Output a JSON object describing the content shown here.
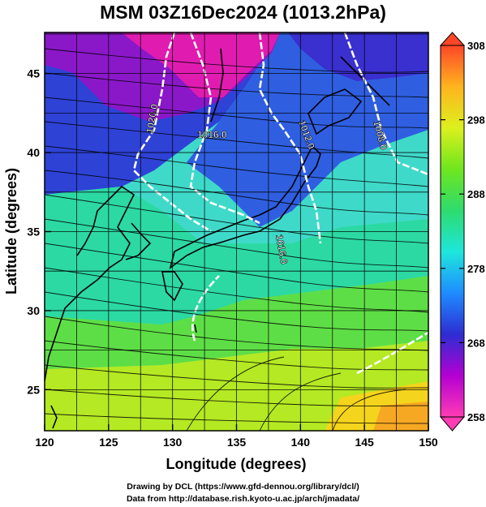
{
  "title": "MSM 03Z16Dec2024 (1013.2hPa)",
  "x_axis": {
    "label": "Longitude (degrees)",
    "range": [
      120,
      150
    ],
    "ticks": [
      120,
      125,
      130,
      135,
      140,
      145,
      150
    ],
    "tick_labels": [
      "120",
      "125",
      "130",
      "135",
      "140",
      "145",
      "150"
    ]
  },
  "y_axis": {
    "label": "Latitude  (degrees)",
    "range": [
      22.4,
      47.6
    ],
    "ticks": [
      25,
      30,
      35,
      40,
      45
    ],
    "tick_labels": [
      "25",
      "30",
      "35",
      "40",
      "45"
    ]
  },
  "colorbar": {
    "range": [
      258,
      308
    ],
    "ticks": [
      258,
      268,
      278,
      288,
      298,
      308
    ],
    "tick_labels": [
      "258",
      "268",
      "278",
      "288",
      "298",
      "308"
    ],
    "colors": [
      "#ff3cb4",
      "#b400d2",
      "#2d2dd2",
      "#1e8cff",
      "#1ee6dc",
      "#2ddc6e",
      "#6ee61e",
      "#dcf01e",
      "#ffb41e",
      "#ff4628"
    ]
  },
  "isobars": {
    "labels": [
      "1020.0",
      "1016.0",
      "1012.0",
      "1008.0",
      "1016.0"
    ]
  },
  "credits": {
    "line1": "Drawing by DCL (https://www.gfd-dennou.org/library/dcl/)",
    "line2": "Data from http://database.rish.kyoto-u.ac.jp/arch/jmadata/"
  }
}
